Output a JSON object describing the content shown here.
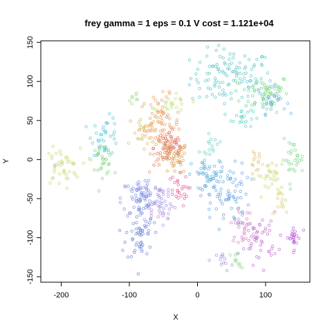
{
  "chart_data": {
    "type": "scatter",
    "title": "frey gamma = 1 eps = 0.1 V cost = 1.121e+04",
    "xlabel": "X",
    "ylabel": "Y",
    "xlim": [
      -230,
      165
    ],
    "ylim": [
      -157,
      152
    ],
    "x_ticks": [
      -200,
      -100,
      0,
      100
    ],
    "y_ticks": [
      -150,
      -100,
      -50,
      0,
      50,
      100,
      150
    ],
    "x_tick_labels": [
      "-200",
      "-100",
      "0",
      "100"
    ],
    "y_tick_labels": [
      "-150",
      "-100",
      "-50",
      "0",
      "50",
      "100",
      "150"
    ],
    "grid": false,
    "legend": "none",
    "marker": "open-circle",
    "clusters": [
      {
        "color": "#5cc8c8",
        "center": [
          50,
          105
        ],
        "spread": [
          30,
          18
        ],
        "count": 120
      },
      {
        "color": "#7fd67f",
        "center": [
          100,
          85
        ],
        "spread": [
          18,
          12
        ],
        "count": 60
      },
      {
        "color": "#66b3e6",
        "center": [
          110,
          75
        ],
        "spread": [
          10,
          8
        ],
        "count": 25
      },
      {
        "color": "#5cd6c2",
        "center": [
          65,
          55
        ],
        "spread": [
          8,
          8
        ],
        "count": 20
      },
      {
        "color": "#e8a060",
        "center": [
          -55,
          45
        ],
        "spread": [
          15,
          18
        ],
        "count": 90
      },
      {
        "color": "#e07060",
        "center": [
          -40,
          15
        ],
        "spread": [
          12,
          12
        ],
        "count": 60
      },
      {
        "color": "#d9a050",
        "center": [
          -35,
          0
        ],
        "spread": [
          10,
          10
        ],
        "count": 40
      },
      {
        "color": "#d4c060",
        "center": [
          -80,
          30
        ],
        "spread": [
          8,
          10
        ],
        "count": 20
      },
      {
        "color": "#c0e080",
        "center": [
          -35,
          70
        ],
        "spread": [
          12,
          6
        ],
        "count": 20
      },
      {
        "color": "#a0d890",
        "center": [
          -90,
          80
        ],
        "spread": [
          6,
          5
        ],
        "count": 8
      },
      {
        "color": "#5cc6d6",
        "center": [
          -135,
          30
        ],
        "spread": [
          10,
          12
        ],
        "count": 40
      },
      {
        "color": "#80d680",
        "center": [
          -140,
          0
        ],
        "spread": [
          8,
          10
        ],
        "count": 30
      },
      {
        "color": "#c8d878",
        "center": [
          -200,
          -10
        ],
        "spread": [
          14,
          12
        ],
        "count": 45
      },
      {
        "color": "#8090e6",
        "center": [
          -80,
          -50
        ],
        "spread": [
          16,
          14
        ],
        "count": 80
      },
      {
        "color": "#7088d8",
        "center": [
          -85,
          -95
        ],
        "spread": [
          10,
          18
        ],
        "count": 55
      },
      {
        "color": "#b090e0",
        "center": [
          -55,
          -55
        ],
        "spread": [
          12,
          15
        ],
        "count": 40
      },
      {
        "color": "#e0609a",
        "center": [
          -30,
          -40
        ],
        "spread": [
          8,
          10
        ],
        "count": 25
      },
      {
        "color": "#6aa6e0",
        "center": [
          40,
          -45
        ],
        "spread": [
          18,
          20
        ],
        "count": 80
      },
      {
        "color": "#5ab0d8",
        "center": [
          20,
          -20
        ],
        "spread": [
          14,
          10
        ],
        "count": 40
      },
      {
        "color": "#c070d0",
        "center": [
          90,
          -100
        ],
        "spread": [
          14,
          16
        ],
        "count": 50
      },
      {
        "color": "#e080c0",
        "center": [
          65,
          -85
        ],
        "spread": [
          8,
          10
        ],
        "count": 25
      },
      {
        "color": "#c060e0",
        "center": [
          140,
          -100
        ],
        "spread": [
          6,
          8
        ],
        "count": 25
      },
      {
        "color": "#80d890",
        "center": [
          140,
          0
        ],
        "spread": [
          8,
          12
        ],
        "count": 30
      },
      {
        "color": "#c8d870",
        "center": [
          110,
          -20
        ],
        "spread": [
          12,
          10
        ],
        "count": 30
      },
      {
        "color": "#d8d070",
        "center": [
          125,
          -55
        ],
        "spread": [
          5,
          8
        ],
        "count": 15
      },
      {
        "color": "#a890e0",
        "center": [
          40,
          -130
        ],
        "spread": [
          6,
          6
        ],
        "count": 12
      },
      {
        "color": "#90d890",
        "center": [
          55,
          -130
        ],
        "spread": [
          4,
          8
        ],
        "count": 10
      },
      {
        "color": "#70d0c0",
        "center": [
          20,
          20
        ],
        "spread": [
          8,
          6
        ],
        "count": 15
      },
      {
        "color": "#d8c070",
        "center": [
          85,
          -5
        ],
        "spread": [
          5,
          8
        ],
        "count": 12
      }
    ]
  }
}
